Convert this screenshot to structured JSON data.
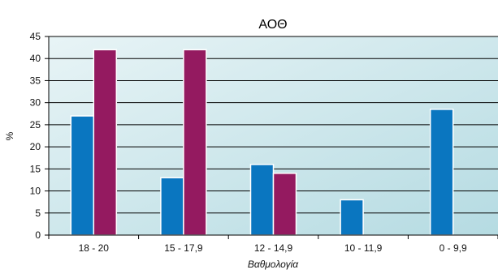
{
  "chart_data": {
    "type": "bar",
    "title": "ΑΟΘ",
    "xlabel": "Βαθμολογία",
    "ylabel": "%",
    "categories": [
      "18 - 20",
      "15 - 17,9",
      "12 - 14,9",
      "10 - 11,9",
      "0 - 9,9"
    ],
    "series": [
      {
        "color": "#0a76c0",
        "values": [
          27,
          13,
          16,
          8,
          28.5
        ]
      },
      {
        "color": "#941a60",
        "values": [
          42,
          42,
          14,
          null,
          null
        ]
      }
    ],
    "ylim": [
      0,
      45
    ],
    "yticks": [
      0,
      5,
      10,
      15,
      20,
      25,
      30,
      35,
      40,
      45
    ],
    "grid": true,
    "legend": "none"
  },
  "colors": {
    "plot_bg_left": "#e4f1f4",
    "plot_bg_right": "#b9dde4",
    "grid": "#000000"
  }
}
